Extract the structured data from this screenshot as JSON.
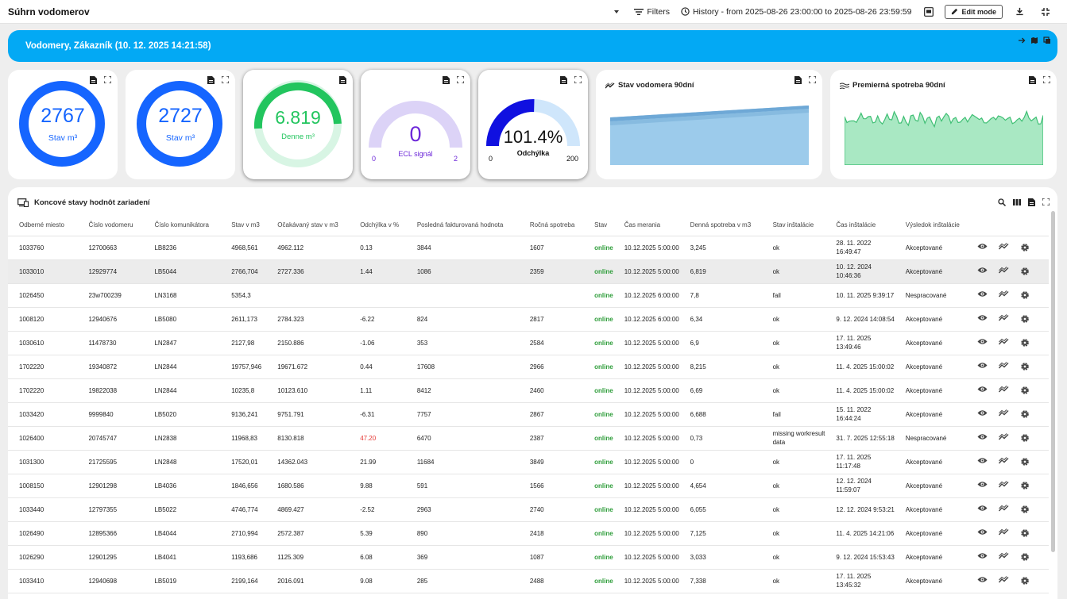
{
  "header": {
    "title": "Súhrn vodomerov",
    "filters_label": "Filters",
    "history_label": "History - from 2025-08-26 23:00:00 to 2025-08-26 23:59:59",
    "edit_label": "Edit mode"
  },
  "banner": {
    "title": "Vodomery, Zákazník (10. 12. 2025 14:21:58)"
  },
  "cards": {
    "stav1": {
      "value": "2767",
      "label": "Stav m³"
    },
    "stav2": {
      "value": "2727",
      "label": "Stav m³"
    },
    "denne": {
      "value": "6.819",
      "label": "Denne m³"
    },
    "ecl": {
      "value": "0",
      "label": "ECL signál",
      "min": "0",
      "max": "2"
    },
    "odch": {
      "value": "101.4%",
      "label": "Odchýlka",
      "min": "0",
      "max": "200"
    },
    "chart1": {
      "title": "Stav vodomera 90dní"
    },
    "chart2": {
      "title": "Premierná spotreba 90dní"
    }
  },
  "table": {
    "title": "Koncové stavy hodnôt zariadení",
    "columns": [
      "Odberné miesto",
      "Číslo vodomeru",
      "Číslo komunikátora",
      "Stav v m3",
      "Očakávaný stav v m3",
      "Odchýlka v %",
      "Posledná fakturovaná hodnota",
      "Ročná spotreba",
      "Stav",
      "Čas merania",
      "Denná spotreba v m3",
      "Stav inštalácie",
      "Čas inštalácie",
      "Výsledok inštalácie"
    ],
    "rows": [
      [
        "1033760",
        "12700663",
        "LB8236",
        "4968,561",
        "4962.112",
        "0.13",
        "3844",
        "1607",
        "online",
        "10.12.2025 5:00:00",
        "3,245",
        "ok",
        "28. 11. 2022|16:49:47",
        "Akceptované"
      ],
      [
        "1033010",
        "12929774",
        "LB5044",
        "2766,704",
        "2727.336",
        "1.44",
        "1086",
        "2359",
        "online",
        "10.12.2025 5:00:00",
        "6,819",
        "ok",
        "10. 12. 2024|10:46:36",
        "Akceptované"
      ],
      [
        "1026450",
        "23w700239",
        "LN3168",
        "5354,3",
        "",
        "",
        "",
        "",
        "online",
        "10.12.2025 6:00:00",
        "7,8",
        "fail",
        "10. 11. 2025 9:39:17",
        "Nespracované"
      ],
      [
        "1008120",
        "12940676",
        "LB5080",
        "2611,173",
        "2784.323",
        "-6.22",
        "824",
        "2817",
        "online",
        "10.12.2025 6:00:00",
        "6,34",
        "ok",
        "9. 12. 2024 14:08:54",
        "Akceptované"
      ],
      [
        "1030610",
        "11478730",
        "LN2847",
        "2127,98",
        "2150.886",
        "-1.06",
        "353",
        "2584",
        "online",
        "10.12.2025 5:00:00",
        "6,9",
        "ok",
        "17. 11. 2025|13:49:46",
        "Akceptované"
      ],
      [
        "1702220",
        "19340872",
        "LN2844",
        "19757,946",
        "19671.672",
        "0.44",
        "17608",
        "2966",
        "online",
        "10.12.2025 5:00:00",
        "8,215",
        "ok",
        "11. 4. 2025 15:00:02",
        "Akceptované"
      ],
      [
        "1702220",
        "19822038",
        "LN2844",
        "10235,8",
        "10123.610",
        "1.11",
        "8412",
        "2460",
        "online",
        "10.12.2025 5:00:00",
        "6,69",
        "ok",
        "11. 4. 2025 15:00:02",
        "Akceptované"
      ],
      [
        "1033420",
        "9999840",
        "LB5020",
        "9136,241",
        "9751.791",
        "-6.31",
        "7757",
        "2867",
        "online",
        "10.12.2025 5:00:00",
        "6,688",
        "fail",
        "15. 11. 2022|16:44:24",
        "Akceptované"
      ],
      [
        "1026400",
        "20745747",
        "LN2838",
        "11968,83",
        "8130.818",
        "47.20",
        "6470",
        "2387",
        "online",
        "10.12.2025 5:00:00",
        "0,73",
        "missing workresult|data",
        "31. 7. 2025 12:55:18",
        "Nespracované"
      ],
      [
        "1031300",
        "21725595",
        "LN2848",
        "17520,01",
        "14362.043",
        "21.99",
        "11684",
        "3849",
        "online",
        "10.12.2025 5:00:00",
        "0",
        "ok",
        "17. 11. 2025|11:17:48",
        "Akceptované"
      ],
      [
        "1008150",
        "12901298",
        "LB4036",
        "1846,656",
        "1680.586",
        "9.88",
        "591",
        "1566",
        "online",
        "10.12.2025 5:00:00",
        "4,654",
        "ok",
        "12. 12. 2024|11:59:07",
        "Akceptované"
      ],
      [
        "1033440",
        "12797355",
        "LB5022",
        "4746,774",
        "4869.427",
        "-2.52",
        "2963",
        "2740",
        "online",
        "10.12.2025 5:00:00",
        "6,055",
        "ok",
        "12. 12. 2024 9:53:21",
        "Akceptované"
      ],
      [
        "1026490",
        "12895366",
        "LB4044",
        "2710,994",
        "2572.387",
        "5.39",
        "890",
        "2418",
        "online",
        "10.12.2025 5:00:00",
        "7,125",
        "ok",
        "11. 4. 2025 14:21:06",
        "Akceptované"
      ],
      [
        "1026290",
        "12901295",
        "LB4041",
        "1193,686",
        "1125.309",
        "6.08",
        "369",
        "1087",
        "online",
        "10.12.2025 5:00:00",
        "3,033",
        "ok",
        "9. 12. 2024 15:53:43",
        "Akceptované"
      ],
      [
        "1033410",
        "12940698",
        "LB5019",
        "2199,164",
        "2016.091",
        "9.08",
        "285",
        "2488",
        "online",
        "10.12.2025 5:00:00",
        "7,338",
        "ok",
        "17. 11. 2025|13:45:32",
        "Akceptované"
      ]
    ]
  },
  "colors": {
    "blue": "#1565ff",
    "green": "#22c55e",
    "purple": "#6d28d9",
    "banner": "#03a9f4"
  }
}
